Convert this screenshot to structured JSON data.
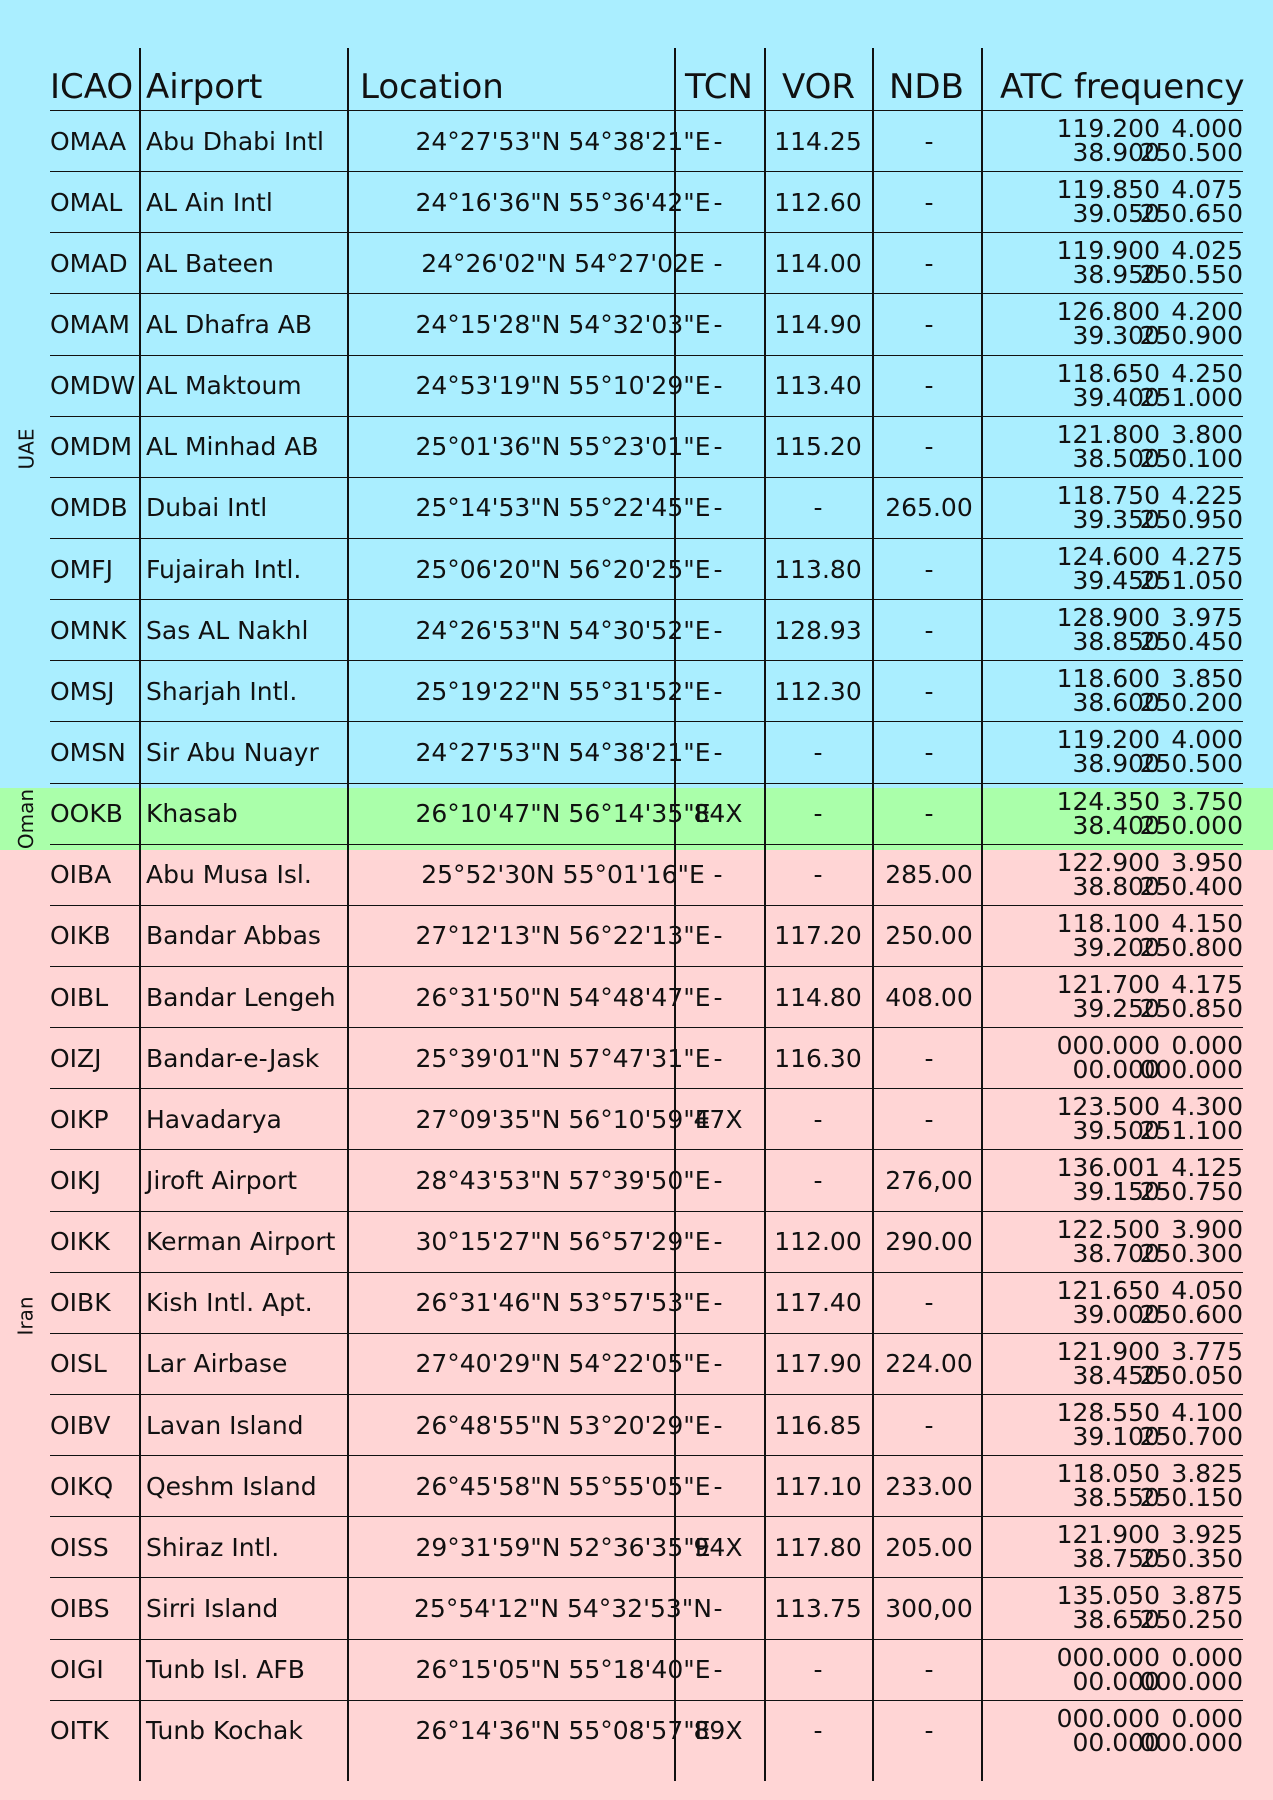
{
  "colors": {
    "uae": "#aaeeff",
    "oman": "#aaffaa",
    "iran": "#ffd5d5"
  },
  "countries": {
    "uae": "UAE",
    "oman": "Oman",
    "iran": "Iran"
  },
  "headers": {
    "icao": "ICAO",
    "airport": "Airport",
    "location": "Location",
    "tcn": "TCN",
    "vor": "VOR",
    "ndb": "NDB",
    "atc": "ATC frequency"
  },
  "rows": [
    {
      "icao": "OMAA",
      "airport": "Abu Dhabi Intl",
      "location": "24°27'53\"N 54°38'21\"E",
      "tcn": "-",
      "vor": "114.25",
      "ndb": "-",
      "atc": [
        "119.200",
        "4.000",
        "38.900",
        "250.500"
      ]
    },
    {
      "icao": "OMAL",
      "airport": "AL Ain Intl",
      "location": "24°16'36\"N 55°36'42\"E",
      "tcn": "-",
      "vor": "112.60",
      "ndb": "-",
      "atc": [
        "119.850",
        "4.075",
        "39.050",
        "250.650"
      ]
    },
    {
      "icao": "OMAD",
      "airport": "AL Bateen",
      "location": "24°26'02\"N 54°27'02E",
      "tcn": "-",
      "vor": "114.00",
      "ndb": "-",
      "atc": [
        "119.900",
        "4.025",
        "38.950",
        "250.550"
      ]
    },
    {
      "icao": "OMAM",
      "airport": "AL Dhafra AB",
      "location": "24°15'28\"N 54°32'03\"E",
      "tcn": "-",
      "vor": "114.90",
      "ndb": "-",
      "atc": [
        "126.800",
        "4.200",
        "39.300",
        "250.900"
      ]
    },
    {
      "icao": "OMDW",
      "airport": "AL Maktoum",
      "location": "24°53'19\"N 55°10'29\"E",
      "tcn": "-",
      "vor": "113.40",
      "ndb": "-",
      "atc": [
        "118.650",
        "4.250",
        "39.400",
        "251.000"
      ]
    },
    {
      "icao": "OMDM",
      "airport": "AL Minhad AB",
      "location": "25°01'36\"N 55°23'01\"E",
      "tcn": "-",
      "vor": "115.20",
      "ndb": "-",
      "atc": [
        "121.800",
        "3.800",
        "38.500",
        "250.100"
      ]
    },
    {
      "icao": "OMDB",
      "airport": "Dubai Intl",
      "location": "25°14'53\"N 55°22'45\"E",
      "tcn": "-",
      "vor": "-",
      "ndb": "265.00",
      "atc": [
        "118.750",
        "4.225",
        "39.350",
        "250.950"
      ]
    },
    {
      "icao": "OMFJ",
      "airport": "Fujairah Intl.",
      "location": "25°06'20\"N 56°20'25\"E",
      "tcn": "-",
      "vor": "113.80",
      "ndb": "-",
      "atc": [
        "124.600",
        "4.275",
        "39.450",
        "251.050"
      ]
    },
    {
      "icao": "OMNK",
      "airport": "Sas AL Nakhl",
      "location": "24°26'53\"N 54°30'52\"E",
      "tcn": "-",
      "vor": "128.93",
      "ndb": "-",
      "atc": [
        "128.900",
        "3.975",
        "38.850",
        "250.450"
      ]
    },
    {
      "icao": "OMSJ",
      "airport": "Sharjah Intl.",
      "location": "25°19'22\"N 55°31'52\"E",
      "tcn": "-",
      "vor": "112.30",
      "ndb": "-",
      "atc": [
        "118.600",
        "3.850",
        "38.600",
        "250.200"
      ]
    },
    {
      "icao": "OMSN",
      "airport": "Sir Abu Nuayr",
      "location": "24°27'53\"N 54°38'21\"E",
      "tcn": "-",
      "vor": "-",
      "ndb": "-",
      "atc": [
        "119.200",
        "4.000",
        "38.900",
        "250.500"
      ]
    },
    {
      "icao": "OOKB",
      "airport": "Khasab",
      "location": "26°10'47\"N 56°14'35\"E",
      "tcn": "84X",
      "vor": "-",
      "ndb": "-",
      "atc": [
        "124.350",
        "3.750",
        "38.400",
        "250.000"
      ]
    },
    {
      "icao": "OIBA",
      "airport": "Abu Musa Isl.",
      "location": "25°52'30N 55°01'16\"E",
      "tcn": "-",
      "vor": "-",
      "ndb": "285.00",
      "atc": [
        "122.900",
        "3.950",
        "38.800",
        "250.400"
      ]
    },
    {
      "icao": "OIKB",
      "airport": "Bandar Abbas",
      "location": "27°12'13\"N 56°22'13\"E",
      "tcn": "-",
      "vor": "117.20",
      "ndb": "250.00",
      "atc": [
        "118.100",
        "4.150",
        "39.200",
        "250.800"
      ]
    },
    {
      "icao": "OIBL",
      "airport": "Bandar Lengeh",
      "location": "26°31'50\"N 54°48'47\"E",
      "tcn": "-",
      "vor": "114.80",
      "ndb": "408.00",
      "atc": [
        "121.700",
        "4.175",
        "39.250",
        "250.850"
      ]
    },
    {
      "icao": "OIZJ",
      "airport": "Bandar-e-Jask",
      "location": "25°39'01\"N 57°47'31\"E",
      "tcn": "-",
      "vor": "116.30",
      "ndb": "-",
      "atc": [
        "000.000",
        "0.000",
        "00.000",
        "000.000"
      ]
    },
    {
      "icao": "OIKP",
      "airport": "Havadarya",
      "location": "27°09'35\"N 56°10'59\"E",
      "tcn": "47X",
      "vor": "-",
      "ndb": "-",
      "atc": [
        "123.500",
        "4.300",
        "39.500",
        "251.100"
      ]
    },
    {
      "icao": "OIKJ",
      "airport": "Jiroft Airport",
      "location": "28°43'53\"N 57°39'50\"E",
      "tcn": "-",
      "vor": "-",
      "ndb": "276,00",
      "atc": [
        "136.001",
        "4.125",
        "39.150",
        "250.750"
      ]
    },
    {
      "icao": "OIKK",
      "airport": "Kerman Airport",
      "location": "30°15'27\"N 56°57'29\"E",
      "tcn": "-",
      "vor": "112.00",
      "ndb": "290.00",
      "atc": [
        "122.500",
        "3.900",
        "38.700",
        "250.300"
      ]
    },
    {
      "icao": "OIBK",
      "airport": "Kish Intl. Apt.",
      "location": "26°31'46\"N 53°57'53\"E",
      "tcn": "-",
      "vor": "117.40",
      "ndb": "-",
      "atc": [
        "121.650",
        "4.050",
        "39.000",
        "250.600"
      ]
    },
    {
      "icao": "OISL",
      "airport": "Lar Airbase",
      "location": "27°40'29\"N 54°22'05\"E",
      "tcn": "-",
      "vor": "117.90",
      "ndb": "224.00",
      "atc": [
        "121.900",
        "3.775",
        "38.450",
        "250.050"
      ]
    },
    {
      "icao": "OIBV",
      "airport": "Lavan Island",
      "location": "26°48'55\"N 53°20'29\"E",
      "tcn": "-",
      "vor": "116.85",
      "ndb": "-",
      "atc": [
        "128.550",
        "4.100",
        "39.100",
        "250.700"
      ]
    },
    {
      "icao": "OIKQ",
      "airport": "Qeshm Island",
      "location": "26°45'58\"N 55°55'05\"E",
      "tcn": "-",
      "vor": "117.10",
      "ndb": "233.00",
      "atc": [
        "118.050",
        "3.825",
        "38.550",
        "250.150"
      ]
    },
    {
      "icao": "OISS",
      "airport": "Shiraz Intl.",
      "location": "29°31'59\"N 52°36'35\"E",
      "tcn": "94X",
      "vor": "117.80",
      "ndb": "205.00",
      "atc": [
        "121.900",
        "3.925",
        "38.750",
        "250.350"
      ]
    },
    {
      "icao": "OIBS",
      "airport": "Sirri Island",
      "location": "25°54'12\"N 54°32'53\"N",
      "tcn": "-",
      "vor": "113.75",
      "ndb": "300,00",
      "atc": [
        "135.050",
        "3.875",
        "38.650",
        "250.250"
      ]
    },
    {
      "icao": "OIGI",
      "airport": "Tunb Isl. AFB",
      "location": "26°15'05\"N 55°18'40\"E",
      "tcn": "-",
      "vor": "-",
      "ndb": "-",
      "atc": [
        "000.000",
        "0.000",
        "00.000",
        "000.000"
      ]
    },
    {
      "icao": "OITK",
      "airport": "Tunb Kochak",
      "location": "26°14'36\"N 55°08'57\"E",
      "tcn": "89X",
      "vor": "-",
      "ndb": "-",
      "atc": [
        "000.000",
        "0.000",
        "00.000",
        "000.000"
      ]
    }
  ]
}
